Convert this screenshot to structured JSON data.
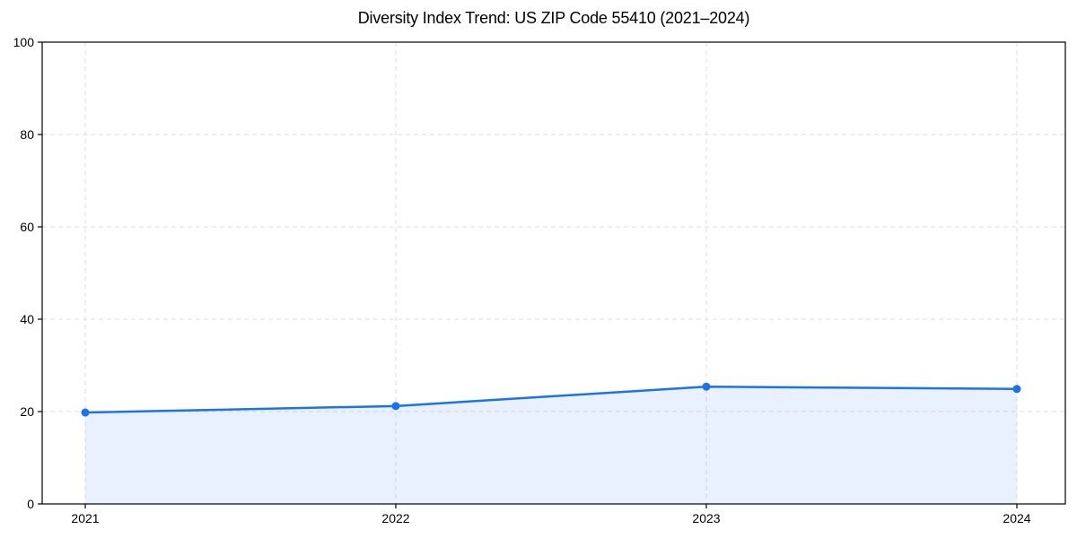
{
  "figure": {
    "background": "#ffffff"
  },
  "chart_data": {
    "type": "area",
    "title": "Diversity Index Trend: US ZIP Code 55410 (2021–2024)",
    "x": [
      2021,
      2022,
      2023,
      2024
    ],
    "values": [
      19.8,
      21.2,
      25.4,
      24.9
    ],
    "xticks": [
      "2021",
      "2022",
      "2023",
      "2024"
    ],
    "yticks": [
      0,
      20,
      40,
      60,
      80,
      100
    ],
    "ylim": [
      0,
      100
    ],
    "xlabel": "",
    "ylabel": "",
    "grid": true,
    "grid_style": "dashed",
    "legend": false,
    "marker": "circle",
    "colors": {
      "line": "#1a73e8",
      "marker": "#1a73e8",
      "fill": "rgba(26,115,232,0.10)",
      "grid": "#dedede",
      "spine": "#000000",
      "tick_text": "#000000",
      "background": "#ffffff"
    }
  }
}
